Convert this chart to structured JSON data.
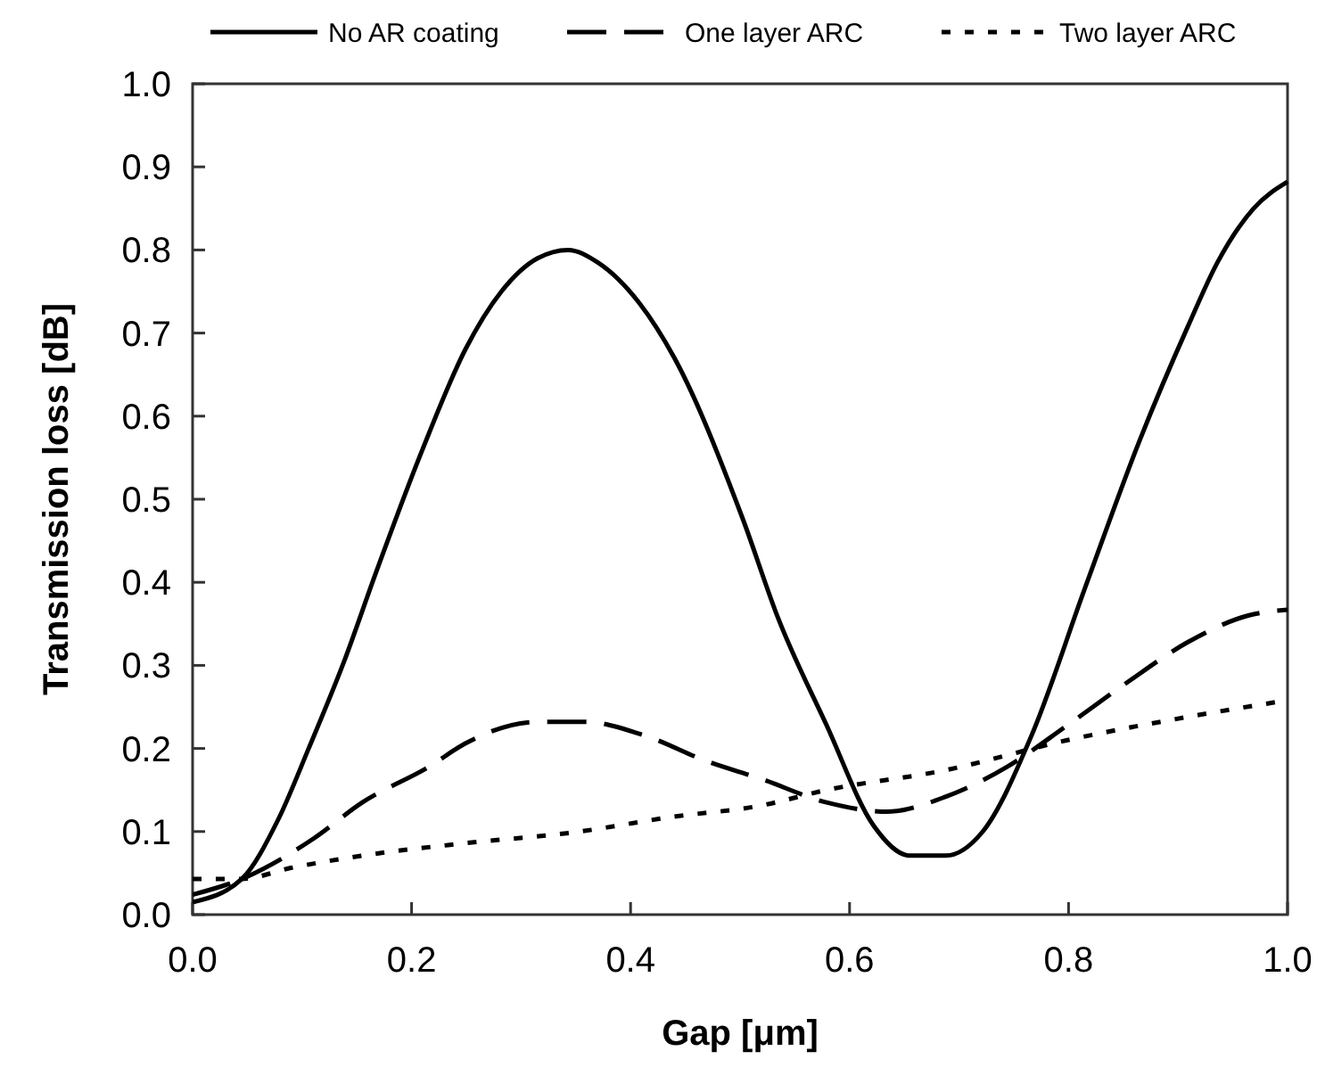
{
  "chart_data": {
    "type": "line",
    "xlabel": "Gap [μm]",
    "ylabel": "Transmission loss [dB]",
    "xlim": [
      0,
      1
    ],
    "ylim": [
      0,
      1
    ],
    "xticks": [
      {
        "value": 0,
        "label": "0.0"
      },
      {
        "value": 0.2,
        "label": "0.2"
      },
      {
        "value": 0.4,
        "label": "0.4"
      },
      {
        "value": 0.6,
        "label": "0.6"
      },
      {
        "value": 0.8,
        "label": "0.8"
      },
      {
        "value": 1,
        "label": "1.0"
      }
    ],
    "yticks": [
      {
        "value": 0,
        "label": "0.0"
      },
      {
        "value": 0.1,
        "label": "0.1"
      },
      {
        "value": 0.2,
        "label": "0.2"
      },
      {
        "value": 0.3,
        "label": "0.3"
      },
      {
        "value": 0.4,
        "label": "0.4"
      },
      {
        "value": 0.5,
        "label": "0.5"
      },
      {
        "value": 0.6,
        "label": "0.6"
      },
      {
        "value": 0.7,
        "label": "0.7"
      },
      {
        "value": 0.8,
        "label": "0.8"
      },
      {
        "value": 0.9,
        "label": "0.9"
      },
      {
        "value": 1,
        "label": "1.0"
      }
    ],
    "legend": "top",
    "series": [
      {
        "name": "No AR coating",
        "color": "#000000",
        "line_style": "solid",
        "x": [
          0,
          0.045,
          0.078,
          0.106,
          0.139,
          0.167,
          0.21,
          0.249,
          0.282,
          0.315,
          0.343,
          0.37,
          0.408,
          0.44,
          0.502,
          0.535,
          0.579,
          0.622,
          0.655,
          0.688,
          0.721,
          0.766,
          0.815,
          0.865,
          0.909,
          0.936,
          0.969,
          1.0
        ],
        "values": [
          0.015,
          0.043,
          0.114,
          0.2,
          0.307,
          0.41,
          0.56,
          0.68,
          0.75,
          0.79,
          0.8,
          0.785,
          0.736,
          0.67,
          0.478,
          0.356,
          0.228,
          0.107,
          0.071,
          0.071,
          0.099,
          0.215,
          0.393,
          0.571,
          0.708,
          0.785,
          0.85,
          0.882
        ]
      },
      {
        "name": "One layer ARC",
        "color": "#000000",
        "line_style": "dashed",
        "x": [
          0,
          0.045,
          0.111,
          0.155,
          0.216,
          0.249,
          0.315,
          0.358,
          0.414,
          0.469,
          0.52,
          0.579,
          0.634,
          0.688,
          0.744,
          0.799,
          0.853,
          0.909,
          0.964,
          1.0
        ],
        "values": [
          0.024,
          0.043,
          0.092,
          0.135,
          0.178,
          0.206,
          0.232,
          0.232,
          0.215,
          0.185,
          0.163,
          0.135,
          0.124,
          0.142,
          0.178,
          0.228,
          0.279,
          0.328,
          0.36,
          0.367
        ]
      },
      {
        "name": "Two layer ARC",
        "color": "#000000",
        "line_style": "dotted",
        "x": [
          0,
          0.045,
          0.089,
          0.155,
          0.249,
          0.348,
          0.44,
          0.518,
          0.579,
          0.688,
          0.799,
          0.909,
          1.0
        ],
        "values": [
          0.043,
          0.043,
          0.056,
          0.071,
          0.086,
          0.099,
          0.118,
          0.131,
          0.15,
          0.174,
          0.21,
          0.238,
          0.258
        ]
      }
    ]
  }
}
